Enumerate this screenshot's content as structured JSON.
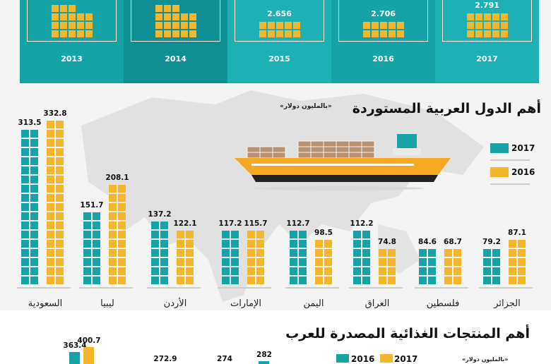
{
  "colors": {
    "teal": "#16a3a8",
    "teal_dark": "#0f8f94",
    "teal_alt": "#1db0b5",
    "yellow": "#f6b62b",
    "ship_orange": "#f7a823",
    "box_brown": "#b7916f"
  },
  "top_panel": {
    "years": [
      {
        "year": "2013",
        "value": ""
      },
      {
        "year": "2014",
        "value": ""
      },
      {
        "year": "2015",
        "value": "2.656"
      },
      {
        "year": "2016",
        "value": "2.706"
      },
      {
        "year": "2017",
        "value": "2.791"
      }
    ]
  },
  "countries_section": {
    "title": "أهم الدول العربية المستوردة",
    "unit_note": "«بالمليون دولار»"
  },
  "products_section": {
    "title": "أهم المنتجات الغذائية المصدرة للعرب",
    "unit_note": "«بالمليون دولار»",
    "visible_values_2016": [
      "363.4",
      "",
      "274",
      "282"
    ],
    "visible_values_2017": [
      "400.7",
      "272.9",
      "",
      ""
    ]
  },
  "chart_data": {
    "type": "bar",
    "title": "أهم الدول العربية المستوردة",
    "unit": "«بالمليون دولار»",
    "categories": [
      "السعودية",
      "ليبيا",
      "الأردن",
      "الإمارات",
      "اليمن",
      "العراق",
      "فلسطين",
      "الجزائر"
    ],
    "series": [
      {
        "name": "2017",
        "color": "#16a3a8",
        "values": [
          313.5,
          151.7,
          137.2,
          117.2,
          112.7,
          112.2,
          84.6,
          79.2
        ]
      },
      {
        "name": "2016",
        "color": "#f6b62b",
        "values": [
          332.8,
          208.1,
          122.1,
          115.7,
          98.5,
          74.8,
          68.7,
          87.1
        ]
      }
    ],
    "legend": [
      {
        "label": "2017",
        "color": "#16a3a8"
      },
      {
        "label": "2016",
        "color": "#f6b62b"
      }
    ],
    "legend_position": "right",
    "ylim": [
      0,
      340
    ],
    "grid": false
  }
}
